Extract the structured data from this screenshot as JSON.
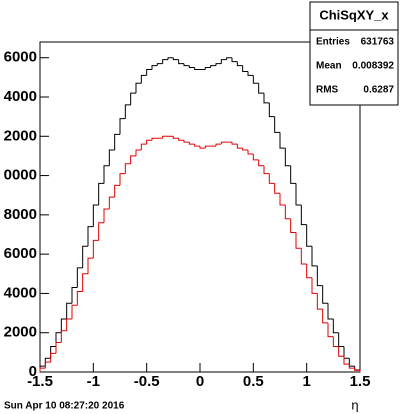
{
  "chart_data": {
    "type": "histogram",
    "x_label": "η",
    "footer": "Sun Apr 10 08:27:20 2016",
    "stats": {
      "title": "ChiSqXY_x",
      "rows": [
        [
          "Entries",
          "631763"
        ],
        [
          "Mean",
          "0.008392"
        ],
        [
          "RMS",
          "0.6287"
        ]
      ]
    },
    "bins": [
      -1.5,
      -1.45,
      -1.4,
      -1.35,
      -1.3,
      -1.25,
      -1.2,
      -1.15,
      -1.1,
      -1.05,
      -1,
      -0.95,
      -0.9,
      -0.85,
      -0.8,
      -0.75,
      -0.7,
      -0.65,
      -0.6,
      -0.55,
      -0.5,
      -0.45,
      -0.4,
      -0.35,
      -0.3,
      -0.25,
      -0.2,
      -0.15,
      -0.1,
      -0.05,
      0,
      0.05,
      0.1,
      0.15,
      0.2,
      0.25,
      0.3,
      0.35,
      0.4,
      0.45,
      0.5,
      0.55,
      0.6,
      0.65,
      0.7,
      0.75,
      0.8,
      0.85,
      0.9,
      0.95,
      1,
      1.05,
      1.1,
      1.15,
      1.2,
      1.25,
      1.3,
      1.35,
      1.4,
      1.45,
      1.5
    ],
    "series": [
      {
        "color": "#000000",
        "values": [
          300,
          700,
          1300,
          2000,
          2700,
          3500,
          4300,
          5300,
          6400,
          7400,
          8500,
          9600,
          10500,
          11300,
          12100,
          12900,
          13600,
          14200,
          14700,
          15100,
          15400,
          15600,
          15700,
          15900,
          16000,
          15900,
          15700,
          15600,
          15500,
          15400,
          15400,
          15500,
          15600,
          15700,
          15900,
          16000,
          15800,
          15600,
          15300,
          15100,
          14700,
          14200,
          13700,
          13000,
          12200,
          11400,
          10500,
          9600,
          8500,
          7500,
          6400,
          5400,
          4400,
          3500,
          2700,
          2000,
          1300,
          700,
          300,
          100
        ]
      },
      {
        "color": "#e00000",
        "values": [
          200,
          500,
          950,
          1500,
          2100,
          2700,
          3400,
          4100,
          5000,
          5800,
          6700,
          7600,
          8300,
          8900,
          9500,
          10100,
          10600,
          11000,
          11300,
          11600,
          11800,
          11900,
          11900,
          12000,
          12000,
          11900,
          11800,
          11700,
          11600,
          11500,
          11400,
          11500,
          11500,
          11600,
          11700,
          11700,
          11600,
          11400,
          11300,
          11100,
          10800,
          10500,
          10100,
          9600,
          9100,
          8500,
          7800,
          7100,
          6300,
          5500,
          4800,
          4000,
          3200,
          2500,
          1800,
          1300,
          800,
          400,
          200,
          80
        ]
      }
    ],
    "xlim": [
      -1.5,
      1.5
    ],
    "xticks": [
      -1.5,
      -1,
      -0.5,
      0,
      0.5,
      1,
      1.5
    ],
    "ylim": [
      0,
      16800
    ],
    "yticks": [
      0,
      {
        "value": 2000,
        "label": "2000"
      },
      {
        "value": 4000,
        "label": "4000"
      },
      {
        "value": 6000,
        "label": "6000"
      },
      {
        "value": 8000,
        "label": "8000"
      },
      {
        "value": 10000,
        "label": "0000"
      },
      {
        "value": 12000,
        "label": "2000"
      },
      {
        "value": 14000,
        "label": "4000"
      },
      {
        "value": 16000,
        "label": "6000"
      }
    ]
  }
}
